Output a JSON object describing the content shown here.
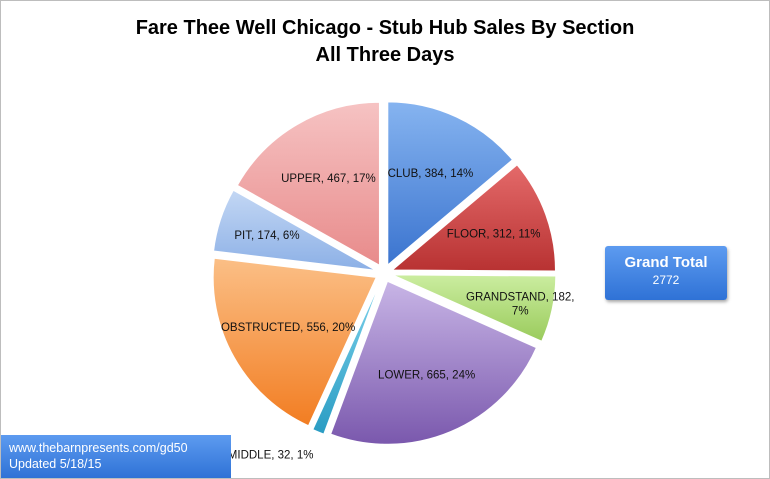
{
  "chart_data": {
    "type": "pie",
    "title_lines": [
      "Fare Thee Well Chicago - Stub Hub Sales By Section",
      "All Three Days"
    ],
    "slices": [
      {
        "label": "CLUB, 384, 14%",
        "name": "CLUB",
        "value": 384,
        "percent": 14,
        "color": "#4a86d8"
      },
      {
        "label": "FLOOR, 312, 11%",
        "name": "FLOOR",
        "value": 312,
        "percent": 11,
        "color": "#cc4444"
      },
      {
        "label": "GRANDSTAND, 182, 7%",
        "name": "GRANDSTAND",
        "value": 182,
        "percent": 7,
        "color": "#a6d66e"
      },
      {
        "label": "LOWER, 665, 24%",
        "name": "LOWER",
        "value": 665,
        "percent": 24,
        "color": "#8a6bbd"
      },
      {
        "label": "MIDDLE, 32, 1%",
        "name": "MIDDLE",
        "value": 32,
        "percent": 1,
        "color": "#3ab0d4"
      },
      {
        "label": "OBSTRUCTED, 556, 20%",
        "name": "OBSTRUCTED",
        "value": 556,
        "percent": 20,
        "color": "#f5903a"
      },
      {
        "label": "PIT, 174, 6%",
        "name": "PIT",
        "value": 174,
        "percent": 6,
        "color": "#a3c1ec"
      },
      {
        "label": "UPPER, 467, 17%",
        "name": "UPPER",
        "value": 467,
        "percent": 17,
        "color": "#ef9f9f"
      }
    ],
    "grand_total_label": "Grand Total",
    "grand_total_value": "2772"
  },
  "footer": {
    "line1": "www.thebarnpresents.com/gd50",
    "line2": "Updated 5/18/15"
  }
}
